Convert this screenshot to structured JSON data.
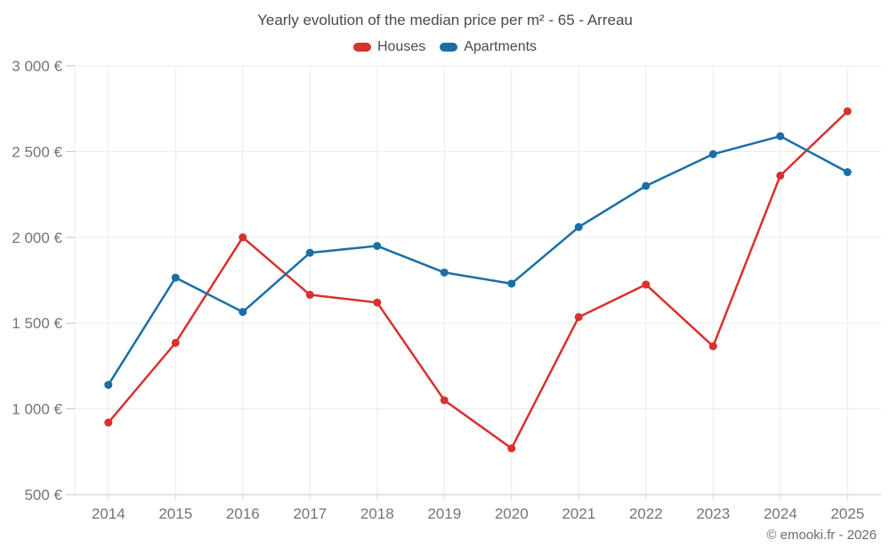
{
  "title": "Yearly evolution of the median price per m² - 65 - Arreau",
  "footer": "© emooki.fr - 2026",
  "chart_data": {
    "type": "line",
    "title": "Yearly evolution of the median price per m² - 65 - Arreau",
    "categories": [
      "2014",
      "2015",
      "2016",
      "2017",
      "2018",
      "2019",
      "2020",
      "2021",
      "2022",
      "2023",
      "2024",
      "2025"
    ],
    "series": [
      {
        "name": "Houses",
        "color": "#d8312f",
        "values": [
          920,
          1385,
          2000,
          1665,
          1620,
          1050,
          770,
          1535,
          1725,
          1365,
          2360,
          2735
        ]
      },
      {
        "name": "Apartments",
        "color": "#1a6fa5",
        "values": [
          1140,
          1765,
          1565,
          1910,
          1950,
          1795,
          1730,
          2060,
          2300,
          2485,
          2590,
          2380
        ]
      }
    ],
    "xlabel": "",
    "ylabel": "",
    "ylim": [
      500,
      3000
    ],
    "ytick_step": 500,
    "ytick_labels": [
      "500 €",
      "1 000 €",
      "1 500 €",
      "2 000 €",
      "2 500 €",
      "3 000 €"
    ],
    "grid": true,
    "legend_position": "top",
    "marker": "circle",
    "colors": {
      "grid": "#ebebeb",
      "axis": "#c9c9c9",
      "tick": "#c4c4c4",
      "tick_label": "#757575",
      "title_text": "#4a4a4a"
    }
  }
}
